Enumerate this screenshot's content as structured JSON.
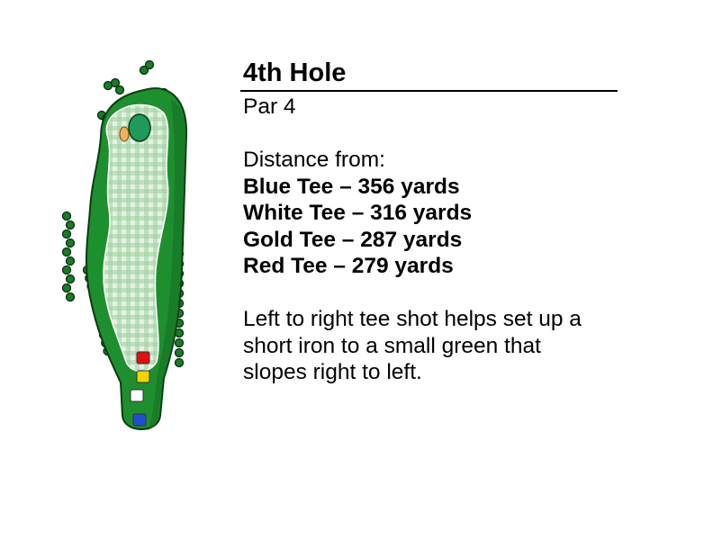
{
  "hole": {
    "title": "4th Hole",
    "par": "Par 4",
    "distance_heading": "Distance from:",
    "tees": [
      {
        "label": "Blue Tee – 356 yards",
        "color": "#1f4fd0"
      },
      {
        "label": "White Tee – 316 yards",
        "color": "#ffffff"
      },
      {
        "label": "Gold Tee – 287 yards",
        "color": "#f2d400"
      },
      {
        "label": "Red Tee – 279 yards",
        "color": "#e01010"
      }
    ],
    "description_lines": [
      "Left to right tee shot helps set up a",
      "short iron to a small green that",
      "slopes right to left."
    ]
  },
  "colors": {
    "rough": "#1e8f2e",
    "fairway": "#cfe8cf",
    "green": "#1f9a5a",
    "bunker": "#f0b060",
    "trees": "#1a7a2a"
  }
}
